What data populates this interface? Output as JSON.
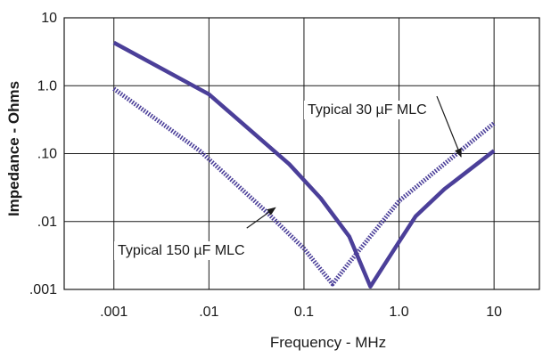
{
  "chart_data": {
    "type": "line",
    "title": "",
    "xlabel": "Frequency - MHz",
    "ylabel": "Impedance - Ohms",
    "xscale": "log",
    "yscale": "log",
    "xlim": [
      0.0003,
      30
    ],
    "ylim": [
      0.001,
      10
    ],
    "x_ticks": [
      {
        "value": 0.001,
        "label": ".001"
      },
      {
        "value": 0.01,
        "label": ".01"
      },
      {
        "value": 0.1,
        "label": "0.1"
      },
      {
        "value": 1,
        "label": "1.0"
      },
      {
        "value": 10,
        "label": "10"
      }
    ],
    "y_ticks": [
      {
        "value": 10,
        "label": "10"
      },
      {
        "value": 1,
        "label": "1.0"
      },
      {
        "value": 0.1,
        "label": ".10"
      },
      {
        "value": 0.01,
        "label": ".01"
      },
      {
        "value": 0.001,
        "label": ".001"
      }
    ],
    "grid": true,
    "legend": "none",
    "series": [
      {
        "style": "solid",
        "color": "#4b3f99",
        "points": [
          [
            0.001,
            4.3
          ],
          [
            0.01,
            0.75
          ],
          [
            0.07,
            0.07
          ],
          [
            0.15,
            0.022
          ],
          [
            0.3,
            0.006
          ],
          [
            0.5,
            0.0011
          ],
          [
            1.0,
            0.005
          ],
          [
            1.5,
            0.012
          ],
          [
            3.0,
            0.03
          ],
          [
            10.0,
            0.11
          ]
        ]
      },
      {
        "style": "dotted",
        "color": "#4b3f99",
        "points": [
          [
            0.001,
            0.9
          ],
          [
            0.008,
            0.11
          ],
          [
            0.04,
            0.014
          ],
          [
            0.1,
            0.004
          ],
          [
            0.2,
            0.0012
          ],
          [
            0.3,
            0.0025
          ],
          [
            1.0,
            0.02
          ],
          [
            10.0,
            0.28
          ]
        ]
      }
    ],
    "annotations": [
      {
        "text": "Typical 30 µF MLC",
        "arrow_from": [
          2.5,
          0.7
        ],
        "arrow_to": [
          4.5,
          0.09
        ]
      },
      {
        "text": "Typical 150 µF MLC",
        "arrow_from": [
          0.025,
          0.008
        ],
        "arrow_to": [
          0.05,
          0.016
        ]
      }
    ]
  }
}
